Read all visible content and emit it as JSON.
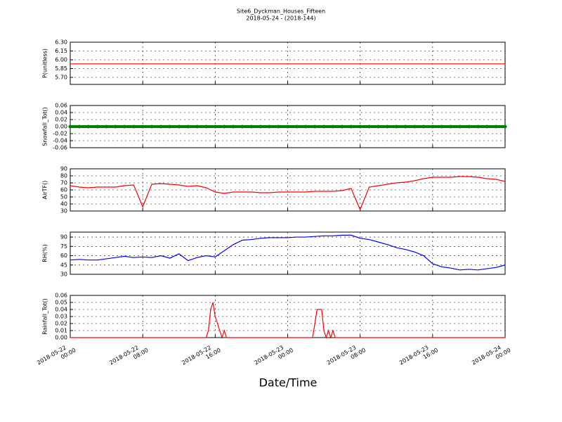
{
  "chart_data": [
    {
      "type": "line",
      "title": "Site6_Dyckman_Houses_Fifteen",
      "subtitle": "2018-05-24 - (2018-144)",
      "y_label": "P(unitless)",
      "color": "#ff0000",
      "grid": true,
      "xlim": [
        "2018-05-22 00:00",
        "2018-05-24 00:00"
      ],
      "ylim": [
        5.58,
        6.3
      ],
      "yticks": [
        {
          "value": 5.7,
          "label": "5.70"
        },
        {
          "value": 5.85,
          "label": "5.85"
        },
        {
          "value": 6.0,
          "label": "6.00"
        },
        {
          "value": 6.15,
          "label": "6.15"
        },
        {
          "value": 6.3,
          "label": "6.30"
        }
      ],
      "x": [
        "2018-05-22 00:00",
        "2018-05-24 00:00"
      ],
      "values": [
        5.93,
        5.93
      ]
    },
    {
      "type": "scatter",
      "y_label": "Snowfall_Tot()",
      "color": "#008000",
      "grid": true,
      "xlim": [
        "2018-05-22 00:00",
        "2018-05-24 00:00"
      ],
      "ylim": [
        -0.06,
        0.06
      ],
      "yticks": [
        -0.06,
        -0.04,
        -0.02,
        {
          "value": 0,
          "label": "0.00"
        },
        0.02,
        0.04,
        0.06
      ],
      "x": [
        "2018-05-22 00:00",
        "2018-05-22 01:00",
        "2018-05-22 02:00",
        "2018-05-22 03:00",
        "2018-05-22 04:00",
        "2018-05-22 05:00",
        "2018-05-22 06:00",
        "2018-05-22 07:00",
        "2018-05-22 08:00",
        "2018-05-22 09:00",
        "2018-05-22 10:00",
        "2018-05-22 11:00",
        "2018-05-22 12:00",
        "2018-05-22 13:00",
        "2018-05-22 14:00",
        "2018-05-22 15:00",
        "2018-05-22 16:00",
        "2018-05-22 17:00",
        "2018-05-22 18:00",
        "2018-05-22 19:00",
        "2018-05-22 20:00",
        "2018-05-22 21:00",
        "2018-05-22 22:00",
        "2018-05-22 23:00",
        "2018-05-23 00:00",
        "2018-05-23 01:00",
        "2018-05-23 02:00",
        "2018-05-23 03:00",
        "2018-05-23 04:00",
        "2018-05-23 05:00",
        "2018-05-23 06:00",
        "2018-05-23 07:00",
        "2018-05-23 08:00",
        "2018-05-23 09:00",
        "2018-05-23 10:00",
        "2018-05-23 11:00",
        "2018-05-23 12:00",
        "2018-05-23 13:00",
        "2018-05-23 14:00",
        "2018-05-23 15:00",
        "2018-05-23 16:00",
        "2018-05-23 17:00",
        "2018-05-23 18:00",
        "2018-05-23 19:00",
        "2018-05-23 20:00",
        "2018-05-23 21:00",
        "2018-05-23 22:00",
        "2018-05-23 23:00",
        "2018-05-24 00:00"
      ],
      "values": [
        0,
        0,
        0,
        0,
        0,
        0,
        0,
        0,
        0,
        0,
        0,
        0,
        0,
        0,
        0,
        0,
        0,
        0,
        0,
        0,
        0,
        0,
        0,
        0,
        0,
        0,
        0,
        0,
        0,
        0,
        0,
        0,
        0,
        0,
        0,
        0,
        0,
        0,
        0,
        0,
        0,
        0,
        0,
        0,
        0,
        0,
        0,
        0,
        0
      ]
    },
    {
      "type": "line",
      "y_label": "AirTF()",
      "color": "#ff0000",
      "grid": true,
      "xlim": [
        "2018-05-22 00:00",
        "2018-05-24 00:00"
      ],
      "ylim": [
        30,
        90
      ],
      "yticks": [
        30,
        40,
        50,
        60,
        70,
        80,
        90
      ],
      "x": [
        "2018-05-22 00:00",
        "2018-05-22 01:00",
        "2018-05-22 02:00",
        "2018-05-22 03:00",
        "2018-05-22 04:00",
        "2018-05-22 05:00",
        "2018-05-22 06:00",
        "2018-05-22 07:00",
        "2018-05-22 08:00",
        "2018-05-22 09:00",
        "2018-05-22 10:00",
        "2018-05-22 11:00",
        "2018-05-22 12:00",
        "2018-05-22 13:00",
        "2018-05-22 14:00",
        "2018-05-22 15:00",
        "2018-05-22 16:00",
        "2018-05-22 17:00",
        "2018-05-22 18:00",
        "2018-05-22 19:00",
        "2018-05-22 20:00",
        "2018-05-22 21:00",
        "2018-05-22 22:00",
        "2018-05-22 23:00",
        "2018-05-23 00:00",
        "2018-05-23 01:00",
        "2018-05-23 02:00",
        "2018-05-23 03:00",
        "2018-05-23 04:00",
        "2018-05-23 05:00",
        "2018-05-23 06:00",
        "2018-05-23 07:00",
        "2018-05-23 08:00",
        "2018-05-23 09:00",
        "2018-05-23 10:00",
        "2018-05-23 11:00",
        "2018-05-23 12:00",
        "2018-05-23 13:00",
        "2018-05-23 14:00",
        "2018-05-23 15:00",
        "2018-05-23 16:00",
        "2018-05-23 17:00",
        "2018-05-23 18:00",
        "2018-05-23 19:00",
        "2018-05-23 20:00",
        "2018-05-23 21:00",
        "2018-05-23 22:00",
        "2018-05-23 23:00",
        "2018-05-24 00:00"
      ],
      "values": [
        66,
        64,
        63,
        64,
        64,
        64,
        66,
        67,
        36,
        68,
        69,
        68,
        67,
        65,
        66,
        63,
        57,
        55,
        57,
        57,
        57,
        56,
        56,
        57,
        57,
        57,
        57,
        58,
        58,
        58,
        59,
        62,
        32,
        64,
        66,
        68,
        70,
        71,
        73,
        76,
        78,
        78,
        78,
        79,
        79,
        78,
        76,
        75,
        72
      ]
    },
    {
      "type": "line",
      "y_label": "RH(%)",
      "color": "#0000ff",
      "grid": true,
      "xlim": [
        "2018-05-22 00:00",
        "2018-05-24 00:00"
      ],
      "ylim": [
        30,
        98
      ],
      "yticks": [
        30,
        45,
        60,
        75,
        90
      ],
      "x": [
        "2018-05-22 00:00",
        "2018-05-22 01:00",
        "2018-05-22 02:00",
        "2018-05-22 03:00",
        "2018-05-22 04:00",
        "2018-05-22 05:00",
        "2018-05-22 06:00",
        "2018-05-22 07:00",
        "2018-05-22 08:00",
        "2018-05-22 09:00",
        "2018-05-22 10:00",
        "2018-05-22 11:00",
        "2018-05-22 12:00",
        "2018-05-22 13:00",
        "2018-05-22 14:00",
        "2018-05-22 15:00",
        "2018-05-22 16:00",
        "2018-05-22 17:00",
        "2018-05-22 18:00",
        "2018-05-22 19:00",
        "2018-05-22 20:00",
        "2018-05-22 21:00",
        "2018-05-22 22:00",
        "2018-05-22 23:00",
        "2018-05-23 00:00",
        "2018-05-23 01:00",
        "2018-05-23 02:00",
        "2018-05-23 03:00",
        "2018-05-23 04:00",
        "2018-05-23 05:00",
        "2018-05-23 06:00",
        "2018-05-23 07:00",
        "2018-05-23 08:00",
        "2018-05-23 09:00",
        "2018-05-23 10:00",
        "2018-05-23 11:00",
        "2018-05-23 12:00",
        "2018-05-23 13:00",
        "2018-05-23 14:00",
        "2018-05-23 15:00",
        "2018-05-23 16:00",
        "2018-05-23 17:00",
        "2018-05-23 18:00",
        "2018-05-23 19:00",
        "2018-05-23 20:00",
        "2018-05-23 21:00",
        "2018-05-23 22:00",
        "2018-05-23 23:00",
        "2018-05-24 00:00"
      ],
      "values": [
        53,
        54,
        53,
        53,
        55,
        57,
        59,
        57,
        58,
        57,
        60,
        56,
        63,
        52,
        57,
        60,
        58,
        68,
        78,
        85,
        86,
        88,
        89,
        89,
        89,
        90,
        90,
        91,
        92,
        92,
        93,
        93,
        88,
        86,
        82,
        78,
        73,
        70,
        66,
        60,
        47,
        42,
        40,
        37,
        38,
        37,
        39,
        41,
        45
      ]
    },
    {
      "type": "line",
      "y_label": "Rainfall_Tot()",
      "x_label": "Date/Time",
      "color": "#ff0000",
      "grid": true,
      "xlim": [
        "2018-05-22 00:00",
        "2018-05-24 00:00"
      ],
      "xticks": [
        "2018-05-22 00:00",
        "2018-05-22 08:00",
        "2018-05-22 16:00",
        "2018-05-23 00:00",
        "2018-05-23 08:00",
        "2018-05-23 16:00",
        "2018-05-24 00:00"
      ],
      "ylim": [
        0,
        0.06
      ],
      "yticks": [
        {
          "value": 0,
          "label": "0.00"
        },
        0.01,
        0.02,
        0.03,
        0.04,
        0.05,
        0.06
      ],
      "x": [
        "2018-05-22 00:00",
        "2018-05-22 15:00",
        "2018-05-22 15:15",
        "2018-05-22 15:30",
        "2018-05-22 15:45",
        "2018-05-22 16:00",
        "2018-05-22 16:15",
        "2018-05-22 16:30",
        "2018-05-22 16:45",
        "2018-05-22 17:00",
        "2018-05-22 17:15",
        "2018-05-23 02:45",
        "2018-05-23 03:00",
        "2018-05-23 03:15",
        "2018-05-23 03:45",
        "2018-05-23 04:00",
        "2018-05-23 04:15",
        "2018-05-23 04:30",
        "2018-05-23 04:45",
        "2018-05-23 05:00",
        "2018-05-23 05:15",
        "2018-05-24 00:00"
      ],
      "values": [
        0,
        0,
        0.01,
        0.04,
        0.05,
        0.03,
        0.02,
        0.01,
        0,
        0.01,
        0,
        0,
        0.02,
        0.04,
        0.04,
        0.01,
        0,
        0.01,
        0,
        0.01,
        0,
        0
      ]
    }
  ]
}
